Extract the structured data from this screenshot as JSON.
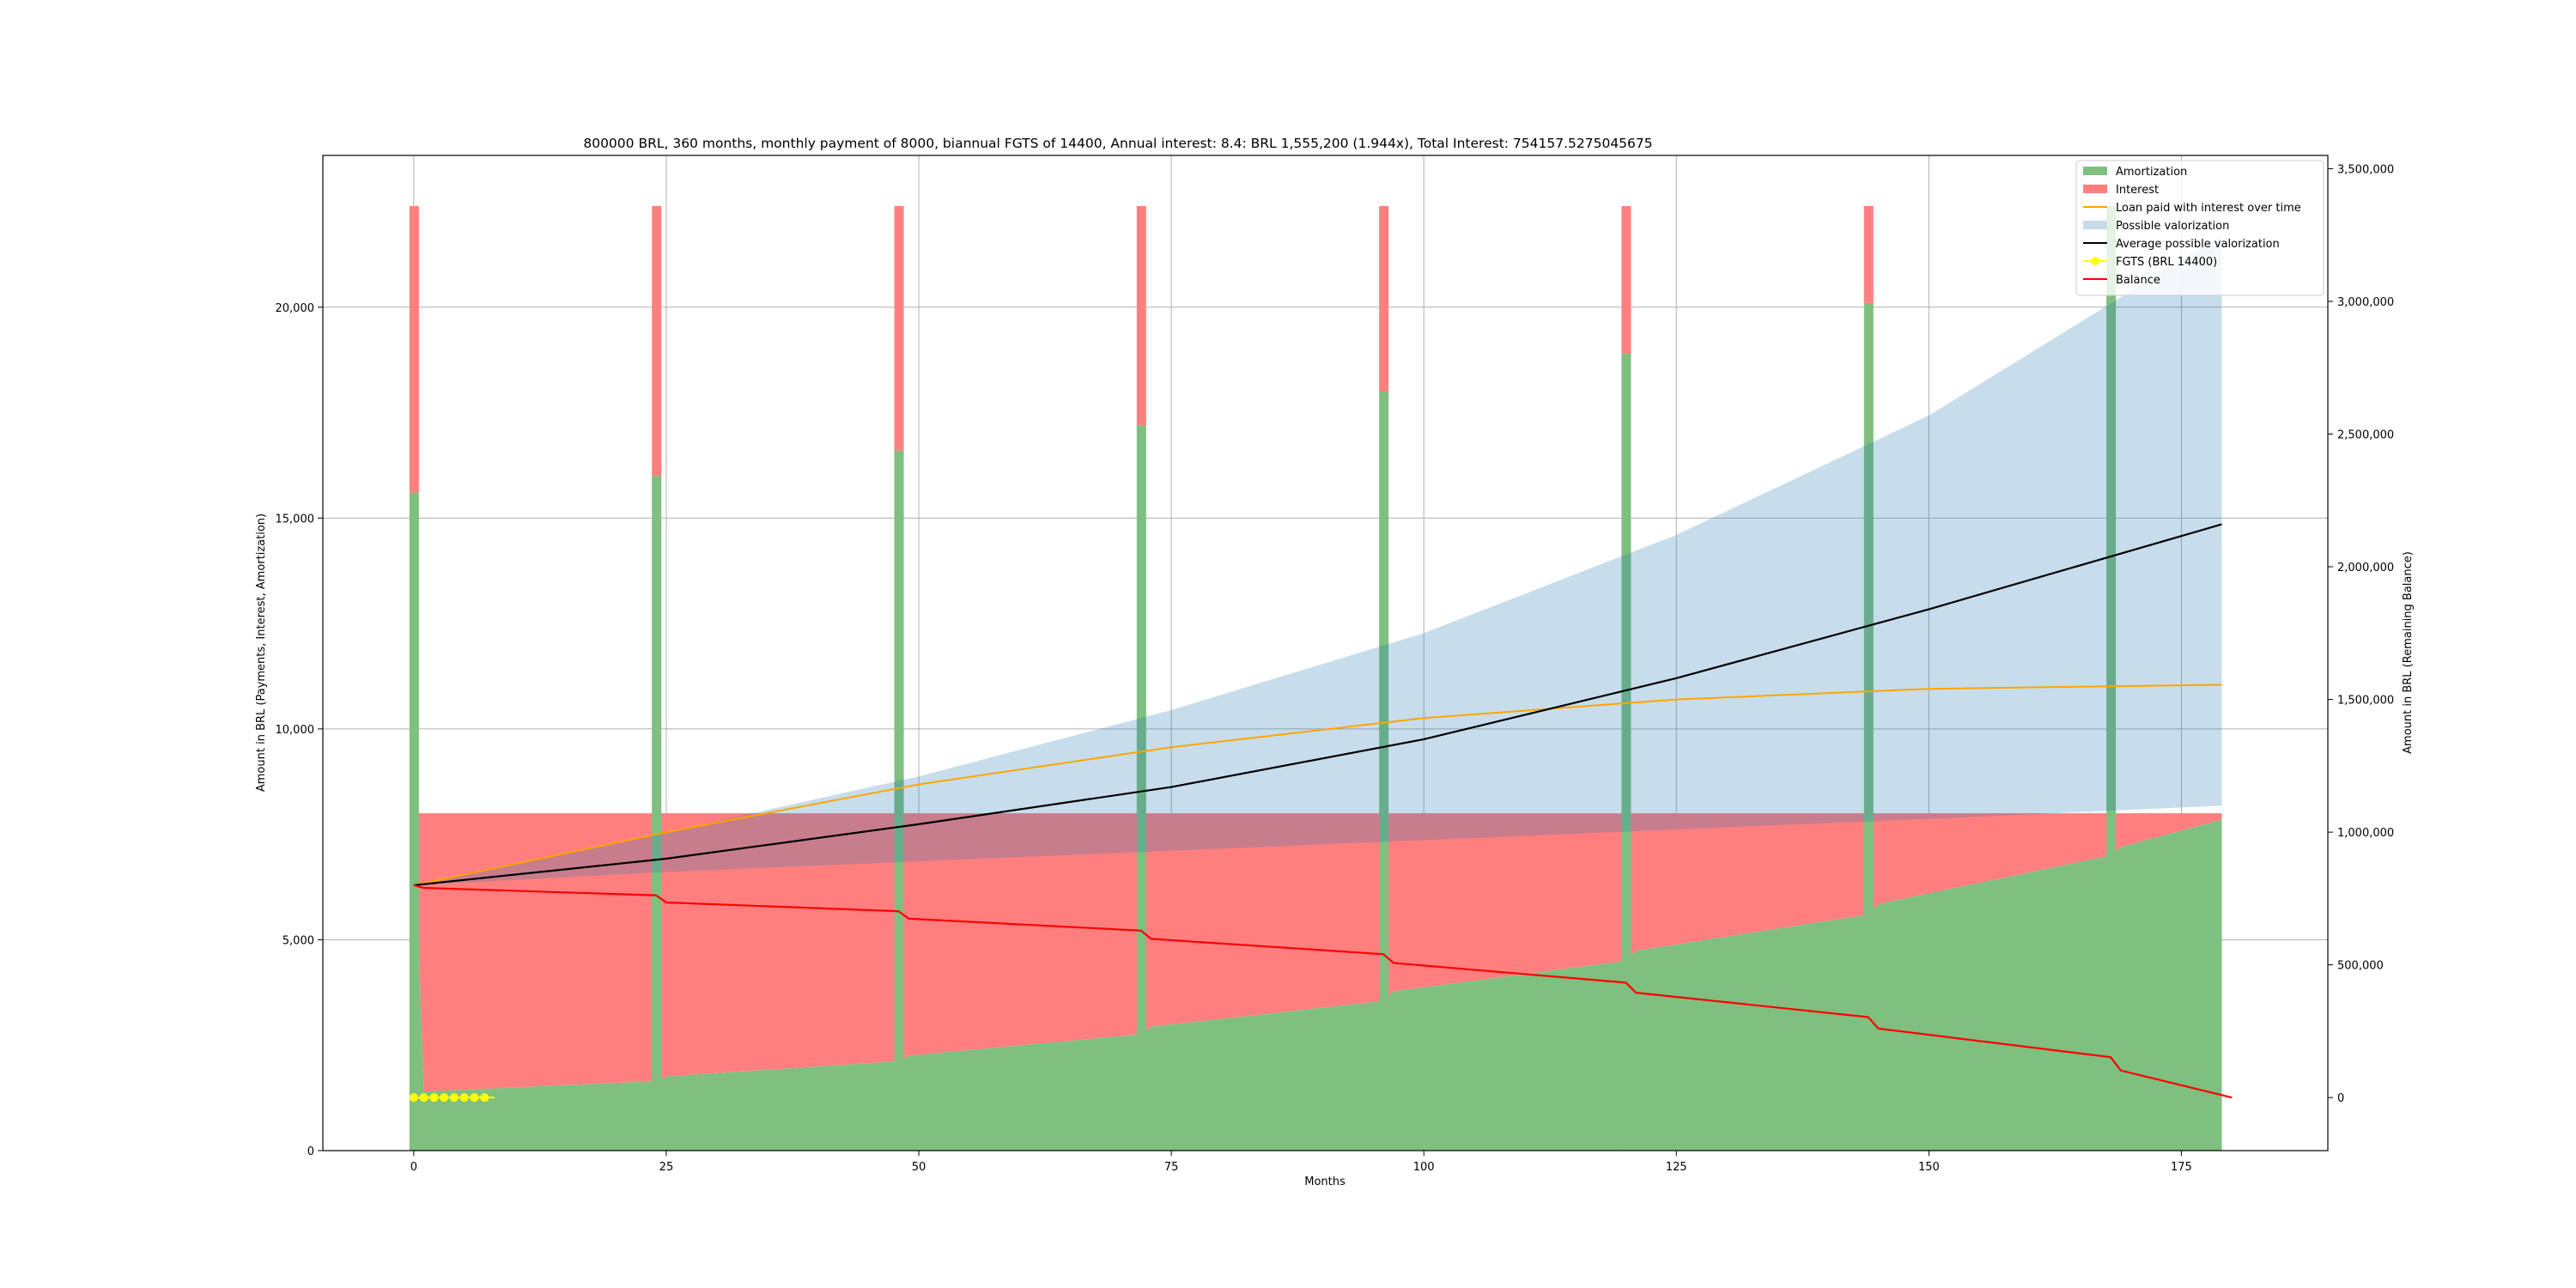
{
  "chart_data": {
    "type": "bar",
    "title": "800000 BRL, 360 months, monthly payment of 8000, biannual FGTS of 14400, Annual interest: 8.4: BRL 1,555,200 (1.944x), Total Interest: 754157.5275045675",
    "xlabel": "Months",
    "ylabel": "Amount in BRL (Payments, Interest, Amortization)",
    "y2label": "Amount in BRL (Remaining Balance)",
    "xlim": [
      -9,
      189.5
    ],
    "ylim": [
      0,
      23600
    ],
    "y2lim": [
      -200000,
      3550000
    ],
    "x_ticks": [
      0,
      25,
      50,
      75,
      100,
      125,
      150,
      175
    ],
    "x_tick_labels": [
      "0",
      "25",
      "50",
      "75",
      "100",
      "125",
      "150",
      "175"
    ],
    "y_ticks": [
      0,
      5000,
      10000,
      15000,
      20000
    ],
    "y_tick_labels": [
      "0",
      "5,000",
      "10,000",
      "15,000",
      "20,000"
    ],
    "y2_ticks": [
      0,
      500000,
      1000000,
      1500000,
      2000000,
      2500000,
      3000000,
      3500000
    ],
    "y2_tick_labels": [
      "0",
      "500,000",
      "1,000,000",
      "1,500,000",
      "2,000,000",
      "2,500,000",
      "3,000,000",
      "3,500,000"
    ],
    "grid": true,
    "legend_position": "top-right",
    "months_range": [
      0,
      179
    ],
    "monthly_payment": 8000,
    "fgts_payment_total": 22400,
    "amortization_series": {
      "x": [
        0,
        1,
        24,
        25,
        48,
        49,
        72,
        73,
        96,
        97,
        120,
        121,
        144,
        145,
        168,
        169,
        179
      ],
      "y": [
        15600,
        1400,
        1650,
        1760,
        2120,
        2250,
        2760,
        2940,
        3550,
        3780,
        4500,
        4740,
        5600,
        5850,
        7000,
        7200,
        7850
      ]
    },
    "fgts_bar_amortization": {
      "x": [
        0,
        24,
        48,
        72,
        96,
        120,
        144,
        168
      ],
      "y": [
        15600,
        16000,
        16600,
        17200,
        18000,
        18900,
        20100,
        22400
      ]
    },
    "possible_valorization": {
      "x": [
        0,
        25,
        50,
        75,
        100,
        125,
        150,
        179
      ],
      "lower": [
        800000,
        850000,
        890000,
        930000,
        970000,
        1010000,
        1050000,
        1100000
      ],
      "upper": [
        800000,
        1000000,
        1210000,
        1460000,
        1750000,
        2120000,
        2570000,
        3250000
      ]
    },
    "average_possible_valorization": {
      "x": [
        0,
        25,
        50,
        75,
        100,
        125,
        150,
        179
      ],
      "y": [
        800000,
        900000,
        1030000,
        1170000,
        1350000,
        1580000,
        1840000,
        2160000
      ]
    },
    "loan_paid_with_interest": {
      "x": [
        0,
        25,
        50,
        75,
        100,
        125,
        150,
        179
      ],
      "y": [
        800000,
        1000000,
        1180000,
        1320000,
        1430000,
        1500000,
        1540000,
        1555200
      ]
    },
    "balance": {
      "x": [
        0,
        1,
        24,
        25,
        48,
        49,
        72,
        73,
        96,
        97,
        120,
        121,
        144,
        145,
        168,
        169,
        180
      ],
      "y": [
        800000,
        790000,
        762000,
        735000,
        702000,
        674000,
        629000,
        598000,
        540000,
        507000,
        433000,
        395000,
        303000,
        260000,
        152000,
        102000,
        0
      ]
    },
    "fgts_markers": {
      "x": [
        0,
        1,
        2,
        3,
        4,
        5,
        6,
        7
      ],
      "y": [
        0,
        0,
        0,
        0,
        0,
        0,
        0,
        0
      ]
    },
    "legend": [
      {
        "label": "Amortization",
        "kind": "patch",
        "color": "#7fbf7f"
      },
      {
        "label": "Interest",
        "kind": "patch",
        "color": "#ff7f7f"
      },
      {
        "label": "Loan paid with interest over time",
        "kind": "line",
        "color": "#ffa500"
      },
      {
        "label": "Possible valorization",
        "kind": "patch",
        "color": "#c6dbec"
      },
      {
        "label": "Average possible valorization",
        "kind": "line",
        "color": "#000000"
      },
      {
        "label": "FGTS (BRL 14400)",
        "kind": "marker",
        "color": "#ffff00"
      },
      {
        "label": "Balance",
        "kind": "line",
        "color": "#ff0000"
      }
    ],
    "colors": {
      "amortization": "#7fbf7f",
      "interest": "#ff7f7f",
      "valorization": "#1f77b4",
      "loan_paid": "#ffa500",
      "average": "#000000",
      "fgts": "#ffff00",
      "balance": "#ff0000"
    }
  }
}
